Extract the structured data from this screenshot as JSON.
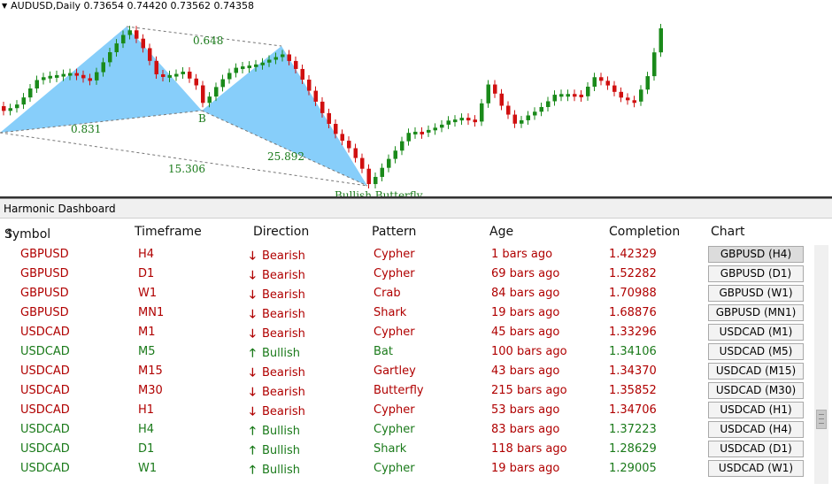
{
  "chart": {
    "symbol_line": "AUDUSD,Daily  0.73654 0.74420 0.73562 0.74358",
    "labels": {
      "ratio_xa": "0.648",
      "ratio_ab": "0.831",
      "ratio_bc": "15.306",
      "ratio_cd": "25.892",
      "point_b": "B",
      "pattern_name": "Bullish Butterfly"
    },
    "colors": {
      "bull_candle": "#1a8a1a",
      "bear_candle": "#d01010",
      "pattern_fill": "#87cefa",
      "label": "#1a7a1a"
    }
  },
  "dashboard": {
    "title": "Harmonic Dashboard",
    "headers": {
      "symbol": "Symbol",
      "sort_icon": "↑",
      "timeframe": "Timeframe",
      "direction": "Direction",
      "pattern": "Pattern",
      "age": "Age",
      "completion": "Completion",
      "chart": "Chart"
    },
    "rows": [
      {
        "symbol": "GBPUSD",
        "tf": "H4",
        "dir": "Bearish",
        "arrow": "🡓",
        "pattern": "Cypher",
        "age": "1 bars ago",
        "completion": "1.42329",
        "button": "GBPUSD (H4)"
      },
      {
        "symbol": "GBPUSD",
        "tf": "D1",
        "dir": "Bearish",
        "arrow": "🡓",
        "pattern": "Cypher",
        "age": "69 bars ago",
        "completion": "1.52282",
        "button": "GBPUSD (D1)"
      },
      {
        "symbol": "GBPUSD",
        "tf": "W1",
        "dir": "Bearish",
        "arrow": "🡓",
        "pattern": "Crab",
        "age": "84 bars ago",
        "completion": "1.70988",
        "button": "GBPUSD (W1)"
      },
      {
        "symbol": "GBPUSD",
        "tf": "MN1",
        "dir": "Bearish",
        "arrow": "🡓",
        "pattern": "Shark",
        "age": "19 bars ago",
        "completion": "1.68876",
        "button": "GBPUSD (MN1)"
      },
      {
        "symbol": "USDCAD",
        "tf": "M1",
        "dir": "Bearish",
        "arrow": "🡓",
        "pattern": "Cypher",
        "age": "45 bars ago",
        "completion": "1.33296",
        "button": "USDCAD (M1)"
      },
      {
        "symbol": "USDCAD",
        "tf": "M5",
        "dir": "Bullish",
        "arrow": "🡑",
        "pattern": "Bat",
        "age": "100 bars ago",
        "completion": "1.34106",
        "button": "USDCAD (M5)"
      },
      {
        "symbol": "USDCAD",
        "tf": "M15",
        "dir": "Bearish",
        "arrow": "🡓",
        "pattern": "Gartley",
        "age": "43 bars ago",
        "completion": "1.34370",
        "button": "USDCAD (M15)"
      },
      {
        "symbol": "USDCAD",
        "tf": "M30",
        "dir": "Bearish",
        "arrow": "🡓",
        "pattern": "Butterfly",
        "age": "215 bars ago",
        "completion": "1.35852",
        "button": "USDCAD (M30)"
      },
      {
        "symbol": "USDCAD",
        "tf": "H1",
        "dir": "Bearish",
        "arrow": "🡓",
        "pattern": "Cypher",
        "age": "53 bars ago",
        "completion": "1.34706",
        "button": "USDCAD (H1)"
      },
      {
        "symbol": "USDCAD",
        "tf": "H4",
        "dir": "Bullish",
        "arrow": "🡑",
        "pattern": "Cypher",
        "age": "83 bars ago",
        "completion": "1.37223",
        "button": "USDCAD (H4)"
      },
      {
        "symbol": "USDCAD",
        "tf": "D1",
        "dir": "Bullish",
        "arrow": "🡑",
        "pattern": "Shark",
        "age": "118 bars ago",
        "completion": "1.28629",
        "button": "USDCAD (D1)"
      },
      {
        "symbol": "USDCAD",
        "tf": "W1",
        "dir": "Bullish",
        "arrow": "🡑",
        "pattern": "Cypher",
        "age": "19 bars ago",
        "completion": "1.29005",
        "button": "USDCAD (W1)"
      }
    ]
  }
}
